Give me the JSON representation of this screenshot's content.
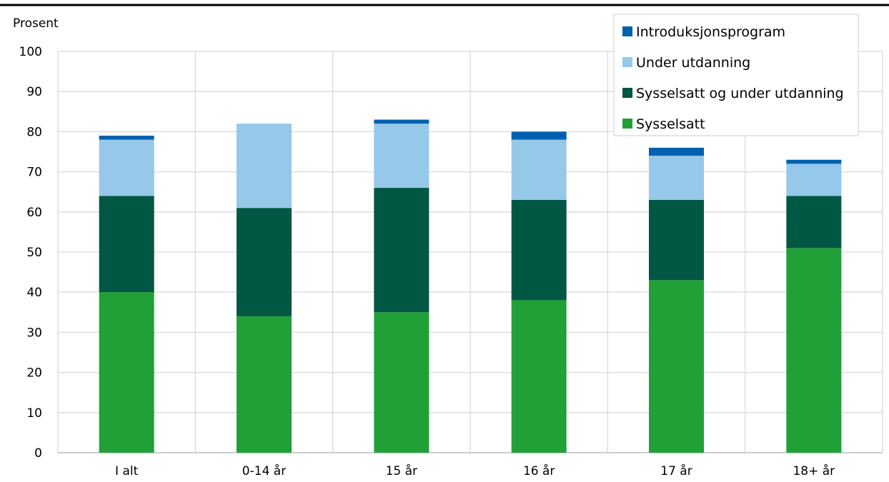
{
  "chart_data": {
    "type": "bar",
    "stacked": true,
    "title": "",
    "xlabel": "",
    "ylabel": "Prosent",
    "ylim": [
      0,
      100
    ],
    "yticks": [
      0,
      10,
      20,
      30,
      40,
      50,
      60,
      70,
      80,
      90,
      100
    ],
    "grid": true,
    "legend_position": "top-right",
    "categories": [
      "I alt",
      "0-14 år",
      "15 år",
      "16 år",
      "17 år",
      "18+ år"
    ],
    "series": [
      {
        "name": "Sysselsatt",
        "color": "#21a038",
        "values": [
          40,
          34,
          35,
          38,
          43,
          51
        ]
      },
      {
        "name": "Sysselsatt og under utdanning",
        "color": "#005744",
        "values": [
          24,
          27,
          31,
          25,
          20,
          13
        ]
      },
      {
        "name": "Under utdanning",
        "color": "#96c8ea",
        "values": [
          14,
          21,
          16,
          15,
          11,
          8
        ]
      },
      {
        "name": "Introduksjonsprogram",
        "color": "#0061b0",
        "values": [
          1,
          0,
          1,
          2,
          2,
          1
        ]
      }
    ],
    "legend_order": [
      "Introduksjonsprogram",
      "Under utdanning",
      "Sysselsatt og under utdanning",
      "Sysselsatt"
    ]
  }
}
